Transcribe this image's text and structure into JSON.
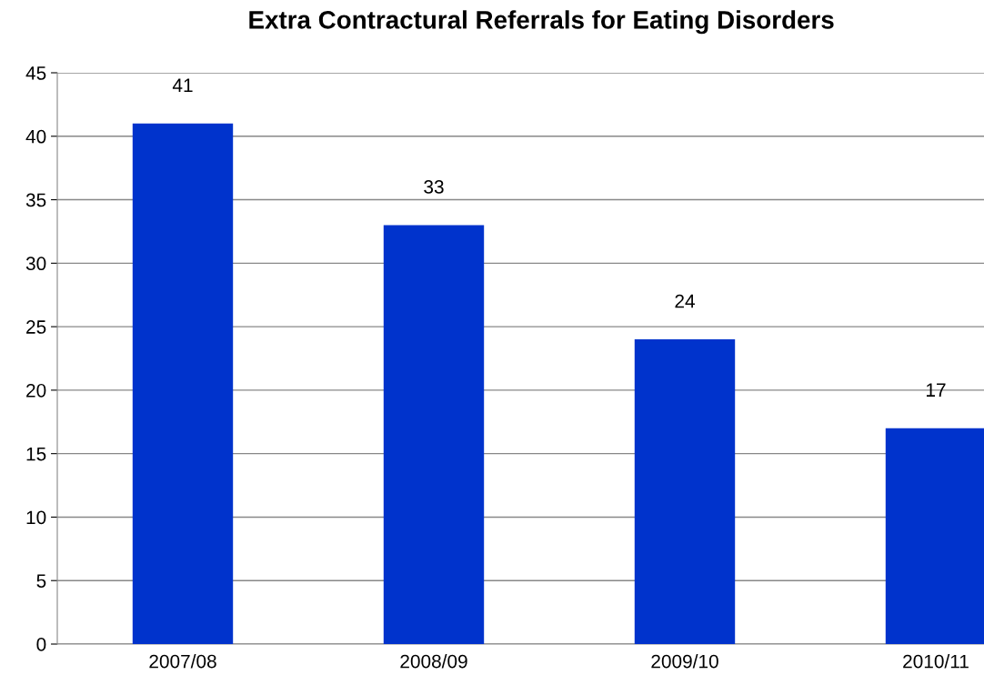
{
  "chart_data": {
    "type": "bar",
    "title": "Extra Contractural Referrals for Eating Disorders",
    "categories": [
      "2007/08",
      "2008/09",
      "2009/10",
      "2010/11"
    ],
    "values": [
      41,
      33,
      24,
      17
    ],
    "color": "#0033cc",
    "ylim": [
      0,
      45
    ],
    "yticks": [
      0,
      5,
      10,
      15,
      20,
      25,
      30,
      35,
      40,
      45
    ],
    "grid": "y",
    "data_labels": true
  }
}
